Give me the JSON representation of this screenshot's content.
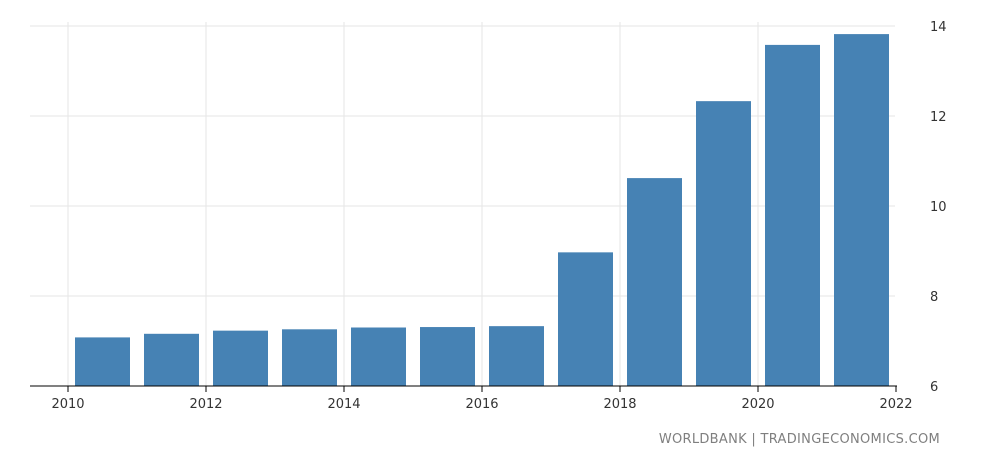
{
  "chart_data": {
    "type": "bar",
    "title": "",
    "xlabel": "",
    "ylabel": "",
    "categories": [
      "2010",
      "2011",
      "2012",
      "2013",
      "2014",
      "2015",
      "2016",
      "2017",
      "2018",
      "2019",
      "2020",
      "2021"
    ],
    "values": [
      7.08,
      7.16,
      7.23,
      7.26,
      7.3,
      7.31,
      7.33,
      8.97,
      10.62,
      12.33,
      13.58,
      13.82
    ],
    "ylim": [
      6,
      14
    ],
    "y_ticks": [
      "6",
      "8",
      "10",
      "12",
      "14"
    ],
    "x_ticks": [
      "2010",
      "2012",
      "2014",
      "2016",
      "2018",
      "2020",
      "2022"
    ],
    "x_tick_years": [
      2010,
      2012,
      2014,
      2016,
      2018,
      2020,
      2022
    ],
    "y_axis_position": "right",
    "grid": true,
    "colors": {
      "bar": "#4682b4",
      "grid": "#e6e6e6",
      "axis": "#000000"
    }
  },
  "source_text": "WORLDBANK | TRADINGECONOMICS.COM"
}
